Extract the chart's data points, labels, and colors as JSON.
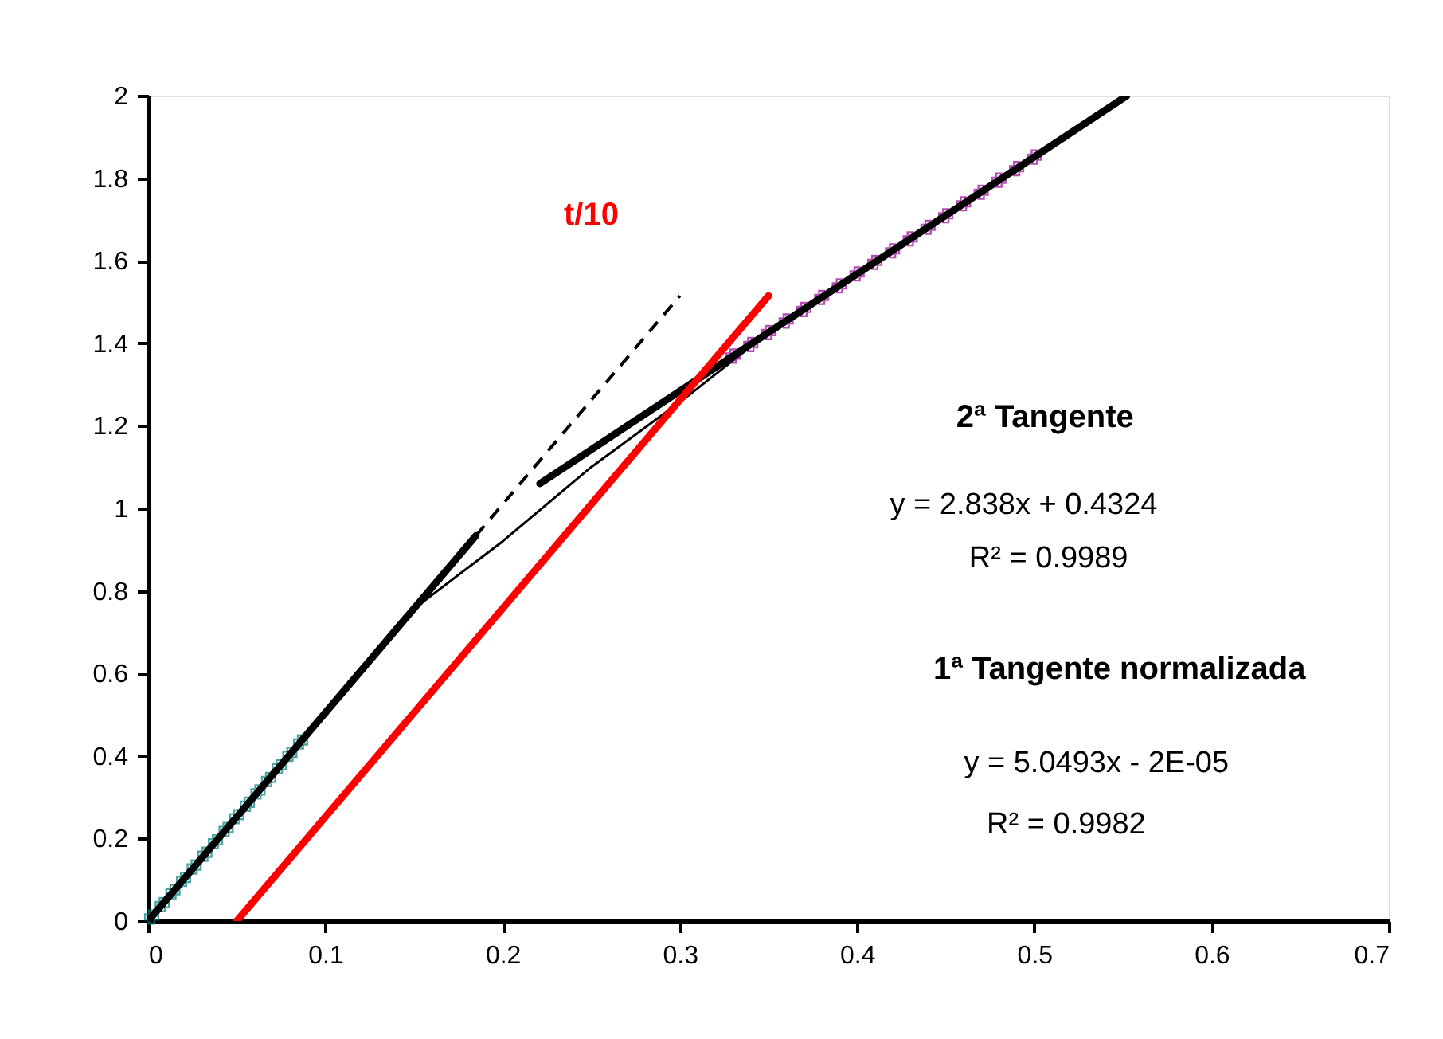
{
  "chart_data": {
    "type": "line",
    "xlim": [
      0,
      0.7
    ],
    "xticks": [
      0,
      0.1,
      0.2,
      0.3,
      0.4,
      0.5,
      0.6,
      0.7
    ],
    "ylim": [
      0,
      2
    ],
    "yticks": [
      0,
      0.2,
      0.4,
      0.6,
      0.8,
      1,
      1.2,
      1.4,
      1.6,
      1.8,
      2
    ],
    "grid": false,
    "series": [
      {
        "color": "#000000",
        "line_style": "solid",
        "x": [
          0,
          0.05,
          0.1,
          0.13,
          0.15,
          0.2,
          0.25,
          0.303,
          0.35,
          0.4,
          0.45,
          0.5
        ],
        "values": [
          0,
          0.252,
          0.505,
          0.65,
          0.757,
          0.92,
          1.1,
          1.267,
          1.426,
          1.568,
          1.709,
          1.851
        ]
      },
      {
        "type": "scatter",
        "color": "#008080",
        "marker": "cross",
        "x": [
          0.002,
          0.008,
          0.014,
          0.02,
          0.026,
          0.032,
          0.038,
          0.044,
          0.05,
          0.056,
          0.062,
          0.068,
          0.074,
          0.08,
          0.086
        ],
        "values": [
          0.01,
          0.04,
          0.071,
          0.101,
          0.131,
          0.162,
          0.192,
          0.222,
          0.253,
          0.283,
          0.313,
          0.343,
          0.374,
          0.404,
          0.434
        ]
      },
      {
        "type": "scatter",
        "color": "#990099",
        "marker": "cross",
        "x": [
          0.33,
          0.34,
          0.35,
          0.36,
          0.37,
          0.38,
          0.39,
          0.4,
          0.41,
          0.42,
          0.43,
          0.44,
          0.45,
          0.46,
          0.47,
          0.48,
          0.49,
          0.5
        ],
        "values": [
          1.369,
          1.397,
          1.426,
          1.454,
          1.482,
          1.511,
          1.539,
          1.568,
          1.596,
          1.624,
          1.653,
          1.681,
          1.709,
          1.738,
          1.766,
          1.795,
          1.823,
          1.851
        ]
      },
      {
        "color": "#000000",
        "line_style": "solid",
        "x": [
          0,
          0.185
        ],
        "values": [
          0,
          0.934
        ]
      },
      {
        "color": "#000000",
        "line_style": "dashed",
        "x": [
          0.185,
          0.3
        ],
        "values": [
          0.934,
          1.515
        ]
      },
      {
        "color": "#000000",
        "line_style": "solid",
        "x": [
          0.221,
          0.552
        ],
        "values": [
          1.06,
          1.999
        ]
      },
      {
        "color": "#ff0000",
        "line_style": "solid",
        "x": [
          0.05,
          0.35
        ],
        "values": [
          0,
          1.515
        ]
      }
    ],
    "annotations": [
      "t/10",
      "2ª Tangente",
      "y = 2.838x + 0.4324",
      "R² = 0.9989",
      "1ª Tangente normalizada",
      "y = 5.0493x - 2E-05",
      "R² = 0.9982"
    ]
  }
}
